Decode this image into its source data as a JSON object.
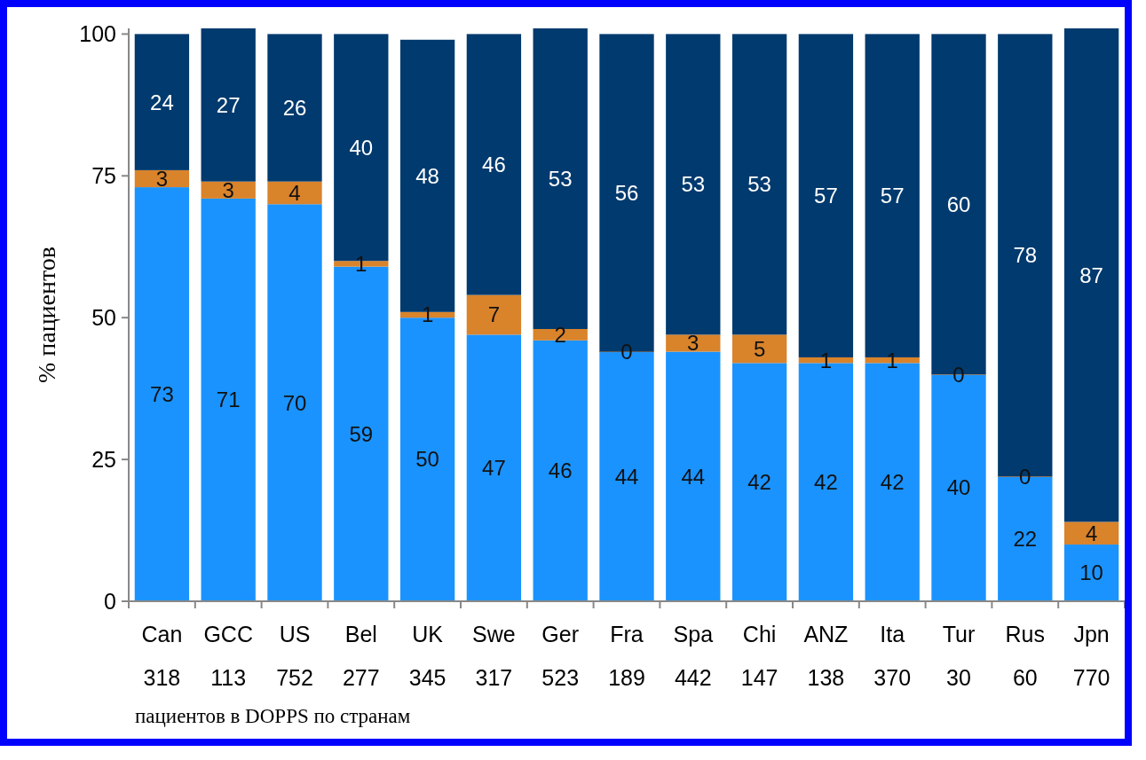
{
  "chart_data": {
    "type": "bar",
    "stacked": true,
    "xlabel": "пациентов в DOPPS по странам",
    "ylabel": "% пациентов",
    "categories": [
      "Can\n318",
      "GCC\n113",
      "US\n752",
      "Bel\n277",
      "UK\n345",
      "Swe\n317",
      "Ger\n523",
      "Fra\n189",
      "Spa\n442",
      "Chi\n147",
      "ANZ\n138",
      "Ita\n370",
      "Tur\n30",
      "Rus\n60",
      "Jpn\n770"
    ],
    "series": [
      {
        "color": "#1a93ff",
        "values": [
          73,
          71,
          70,
          59,
          50,
          47,
          46,
          44,
          44,
          42,
          42,
          42,
          40,
          22,
          10
        ]
      },
      {
        "color": "#d9832b",
        "values": [
          3,
          3,
          4,
          1,
          1,
          7,
          2,
          0,
          3,
          5,
          1,
          1,
          0,
          0,
          4
        ]
      },
      {
        "color": "#003a6e",
        "values": [
          24,
          27,
          26,
          40,
          48,
          46,
          53,
          56,
          53,
          53,
          57,
          57,
          60,
          78,
          87
        ]
      }
    ],
    "ylim": [
      0,
      101
    ],
    "yticks": [
      0,
      25,
      50,
      75,
      100
    ],
    "data_labels": true,
    "grid": false
  }
}
